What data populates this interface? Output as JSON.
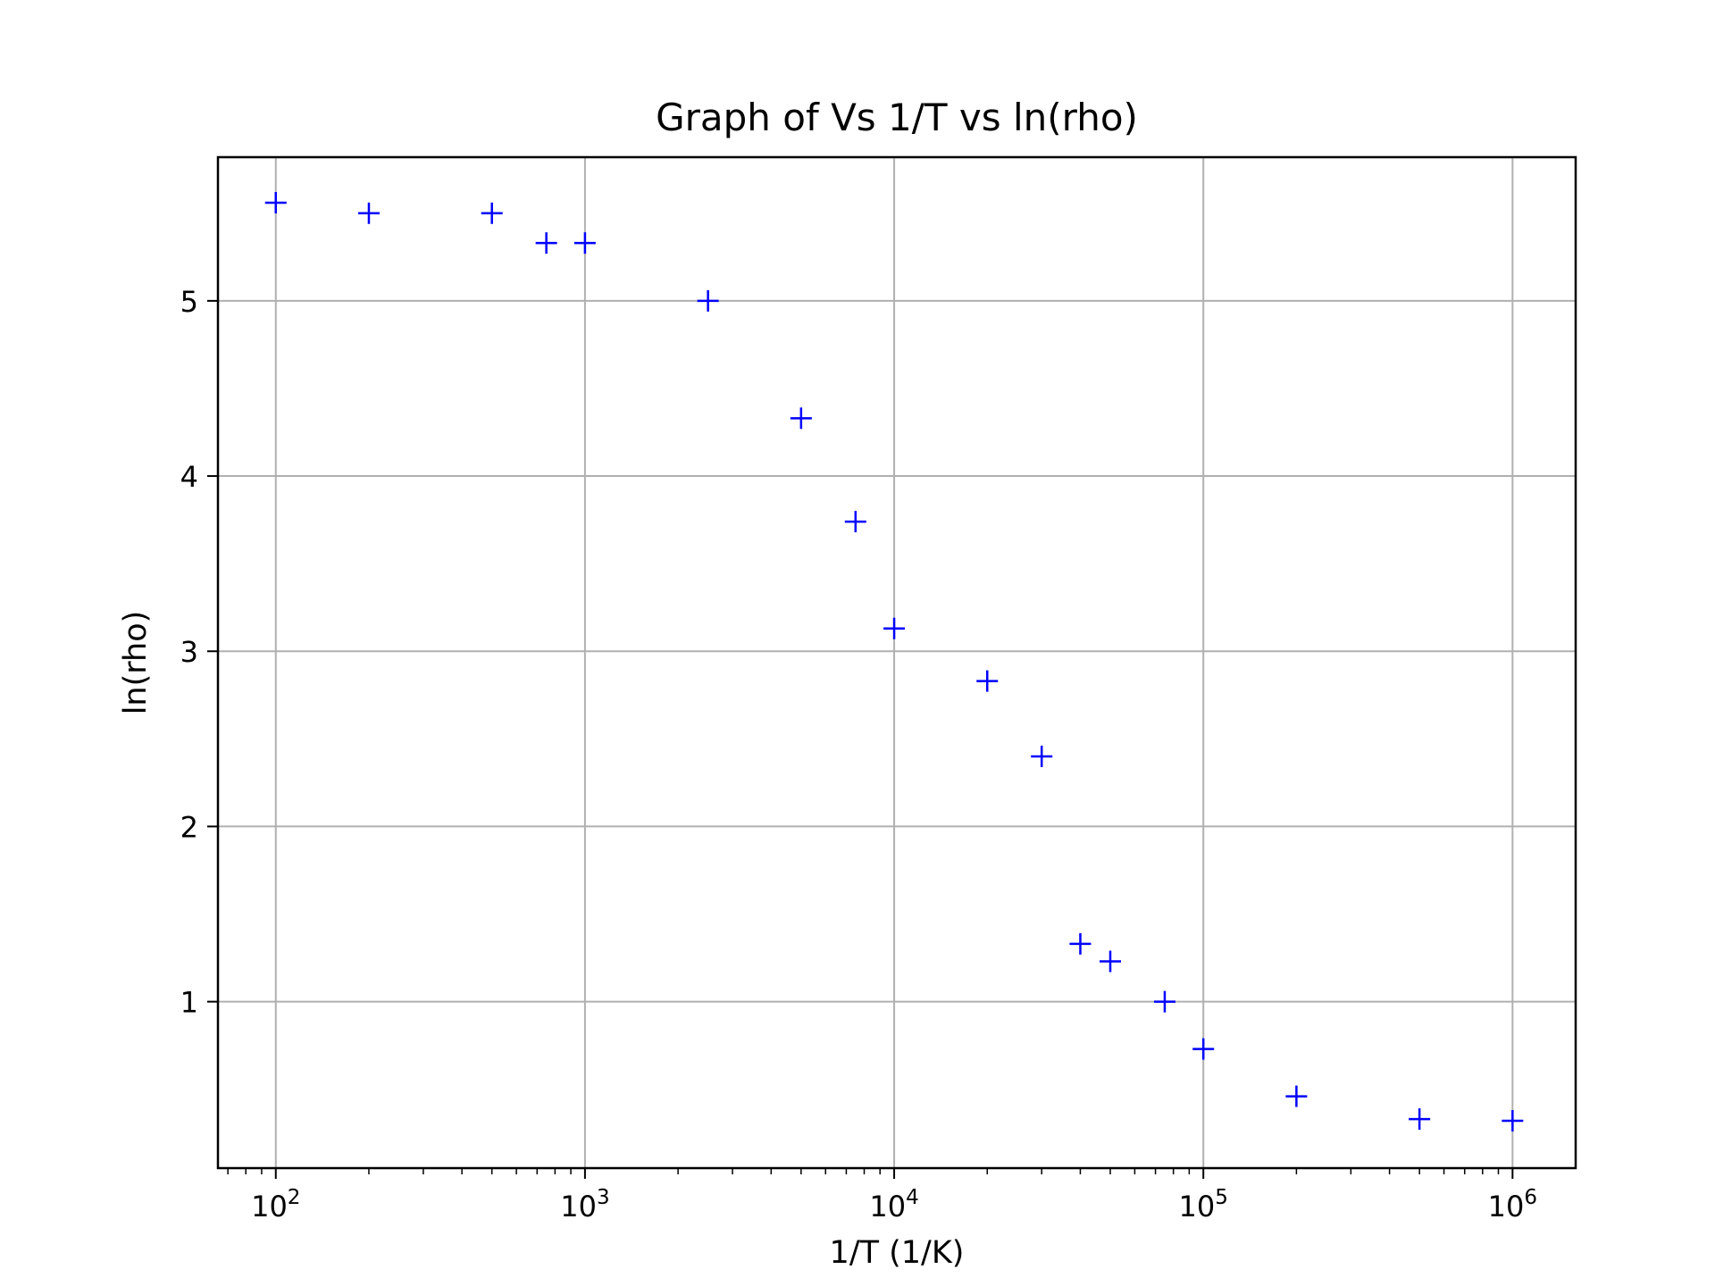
{
  "chart_data": {
    "type": "scatter",
    "title": "Graph of Vs 1/T vs ln(rho)",
    "xlabel": "1/T (1/K)",
    "ylabel": "ln(rho)",
    "xscale": "log",
    "xlim": [
      65,
      1600000
    ],
    "ylim": [
      0.05,
      5.82
    ],
    "grid": true,
    "marker": "+",
    "color": "#0000ff",
    "x_ticks": [
      {
        "value": 100,
        "base": "10",
        "exp": "2"
      },
      {
        "value": 1000,
        "base": "10",
        "exp": "3"
      },
      {
        "value": 10000,
        "base": "10",
        "exp": "4"
      },
      {
        "value": 100000,
        "base": "10",
        "exp": "5"
      },
      {
        "value": 1000000,
        "base": "10",
        "exp": "6"
      }
    ],
    "y_ticks": [
      {
        "value": 1,
        "label": "1"
      },
      {
        "value": 2,
        "label": "2"
      },
      {
        "value": 3,
        "label": "3"
      },
      {
        "value": 4,
        "label": "4"
      },
      {
        "value": 5,
        "label": "5"
      }
    ],
    "points": [
      {
        "x": 100,
        "y": 5.56
      },
      {
        "x": 200,
        "y": 5.5
      },
      {
        "x": 500,
        "y": 5.5
      },
      {
        "x": 750,
        "y": 5.33
      },
      {
        "x": 1000,
        "y": 5.33
      },
      {
        "x": 2500,
        "y": 5.0
      },
      {
        "x": 5000,
        "y": 4.33
      },
      {
        "x": 7500,
        "y": 3.74
      },
      {
        "x": 10000,
        "y": 3.13
      },
      {
        "x": 20000,
        "y": 2.83
      },
      {
        "x": 30000,
        "y": 2.4
      },
      {
        "x": 40000,
        "y": 1.33
      },
      {
        "x": 50000,
        "y": 1.23
      },
      {
        "x": 75000,
        "y": 1.0
      },
      {
        "x": 100000,
        "y": 0.73
      },
      {
        "x": 200000,
        "y": 0.46
      },
      {
        "x": 500000,
        "y": 0.33
      },
      {
        "x": 1000000,
        "y": 0.32
      }
    ]
  }
}
